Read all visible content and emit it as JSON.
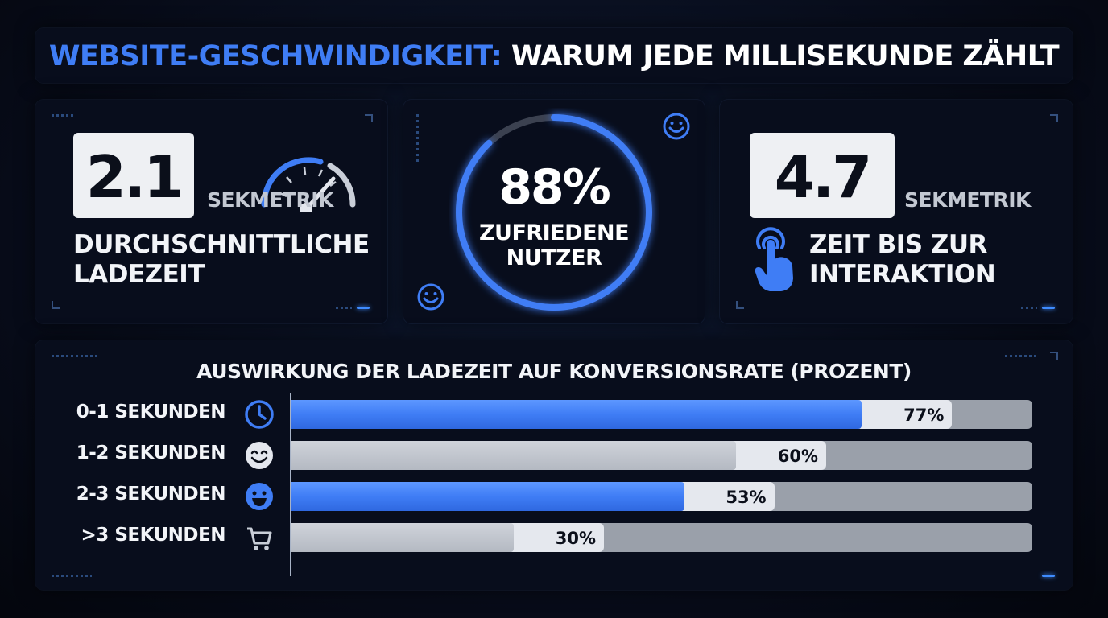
{
  "title": {
    "accent": "WEBSITE-GESCHWINDIGKEIT:",
    "rest": " WARUM JEDE MILLISEKUNDE ZÄHLT"
  },
  "cards": {
    "load_time": {
      "value": "2.1",
      "unit": "SEKMETRIK",
      "label": "DURCHSCHNITTLICHE\nLADEZEIT",
      "icon": "speedometer-icon"
    },
    "satisfaction": {
      "value": "88%",
      "label": "ZUFRIEDENE\nNUTZER",
      "ring_fraction": 0.88,
      "icon": "smiley-icon"
    },
    "interaction": {
      "value": "4.7",
      "unit": "SEKMETRIK",
      "label": "ZEIT BIS ZUR\nINTERAKTION",
      "icon": "tap-hand-icon"
    }
  },
  "colors": {
    "accent": "#3f7df5",
    "background": "#070b18",
    "panel": "#080d1c"
  },
  "chart_data": {
    "type": "bar",
    "orientation": "horizontal",
    "title": "AUSWIRKUNG DER LADEZEIT AUF KONVERSIONSRATE (PROZENT)",
    "categories": [
      ">3 SEKUNDEN",
      "2-3 SEKUNDEN",
      "1-2 SEKUNDEN",
      "0-1 SEKUNDEN"
    ],
    "values": [
      30,
      53,
      60,
      77
    ],
    "value_labels": [
      "30%",
      "53%",
      "60%",
      "77%"
    ],
    "category_icons": [
      "shopping-cart-icon",
      "grinning-face-icon",
      "smiling-face-icon",
      "clock-icon"
    ],
    "xlim": [
      0,
      100
    ],
    "bar_colors": [
      "#b4b9c2",
      "#3f7df5",
      "#b4b9c2",
      "#3f7df5"
    ],
    "grid": false,
    "legend": "none"
  }
}
